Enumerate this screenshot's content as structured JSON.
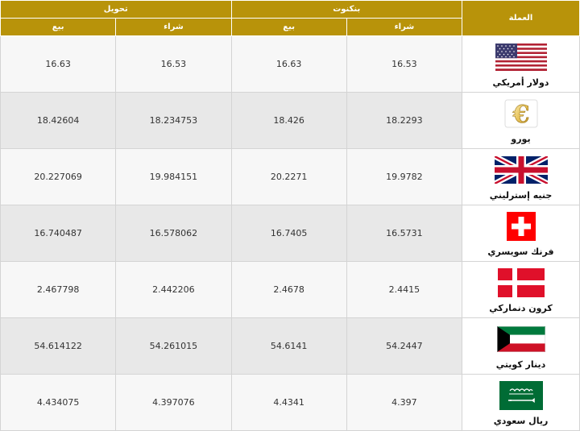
{
  "header": {
    "currency": "العملة",
    "banknotes": "بنكنوت",
    "transfer": "تحويل",
    "buy": "شراء",
    "sell": "بيع"
  },
  "rates": [
    {
      "currency": "دولار أمريكي",
      "flag": "us-flag-icon",
      "banknote_buy": "16.53",
      "banknote_sell": "16.63",
      "transfer_buy": "16.53",
      "transfer_sell": "16.63"
    },
    {
      "currency": "يورو",
      "flag": "euro-sign-icon",
      "banknote_buy": "18.2293",
      "banknote_sell": "18.426",
      "transfer_buy": "18.234753",
      "transfer_sell": "18.42604"
    },
    {
      "currency": "جنيه إسترليني",
      "flag": "uk-flag-icon",
      "banknote_buy": "19.9782",
      "banknote_sell": "20.2271",
      "transfer_buy": "19.984151",
      "transfer_sell": "20.227069"
    },
    {
      "currency": "فرنك سويسري",
      "flag": "swiss-flag-icon",
      "banknote_buy": "16.5731",
      "banknote_sell": "16.7405",
      "transfer_buy": "16.578062",
      "transfer_sell": "16.740487"
    },
    {
      "currency": "كرون دنماركي",
      "flag": "danish-flag-icon",
      "banknote_buy": "2.4415",
      "banknote_sell": "2.4678",
      "transfer_buy": "2.442206",
      "transfer_sell": "2.467798"
    },
    {
      "currency": "دينار كويتي",
      "flag": "kuwait-flag-icon",
      "banknote_buy": "54.2447",
      "banknote_sell": "54.6141",
      "transfer_buy": "54.261015",
      "transfer_sell": "54.614122"
    },
    {
      "currency": "ريال سعودي",
      "flag": "saudi-flag-icon",
      "banknote_buy": "4.397",
      "banknote_sell": "4.4341",
      "transfer_buy": "4.397076",
      "transfer_sell": "4.434075"
    }
  ],
  "colors": {
    "header_bg": "#b8930a",
    "row_light": "#f7f7f7",
    "row_dark": "#e8e8e8"
  }
}
